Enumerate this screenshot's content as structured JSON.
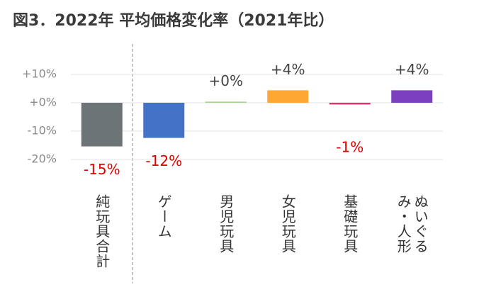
{
  "chart_data": {
    "type": "bar",
    "title": "図3．2022年 平均価格変化率（2021年比）",
    "categories": [
      "純玩具合計",
      "ゲーム",
      "男児玩具",
      "女児玩具",
      "基礎玩具",
      "ぬいぐるみ・人形"
    ],
    "values": [
      -15.4,
      -12.4,
      0.4,
      4.4,
      -0.6,
      4.4
    ],
    "value_labels": [
      "-15%",
      "-12%",
      "+0%",
      "+4%",
      "-1%",
      "+4%"
    ],
    "colors": [
      "#6d7478",
      "#4472c4",
      "#a9d18e",
      "#ffa733",
      "#e0336b",
      "#7b3fbf"
    ],
    "ylim": [
      -20,
      10
    ],
    "yticks": [
      {
        "value": 10,
        "label": "+10%"
      },
      {
        "value": 0,
        "label": "+0%"
      },
      {
        "value": -10,
        "label": "-10%"
      },
      {
        "value": -20,
        "label": "-20%"
      }
    ],
    "grid": true
  }
}
